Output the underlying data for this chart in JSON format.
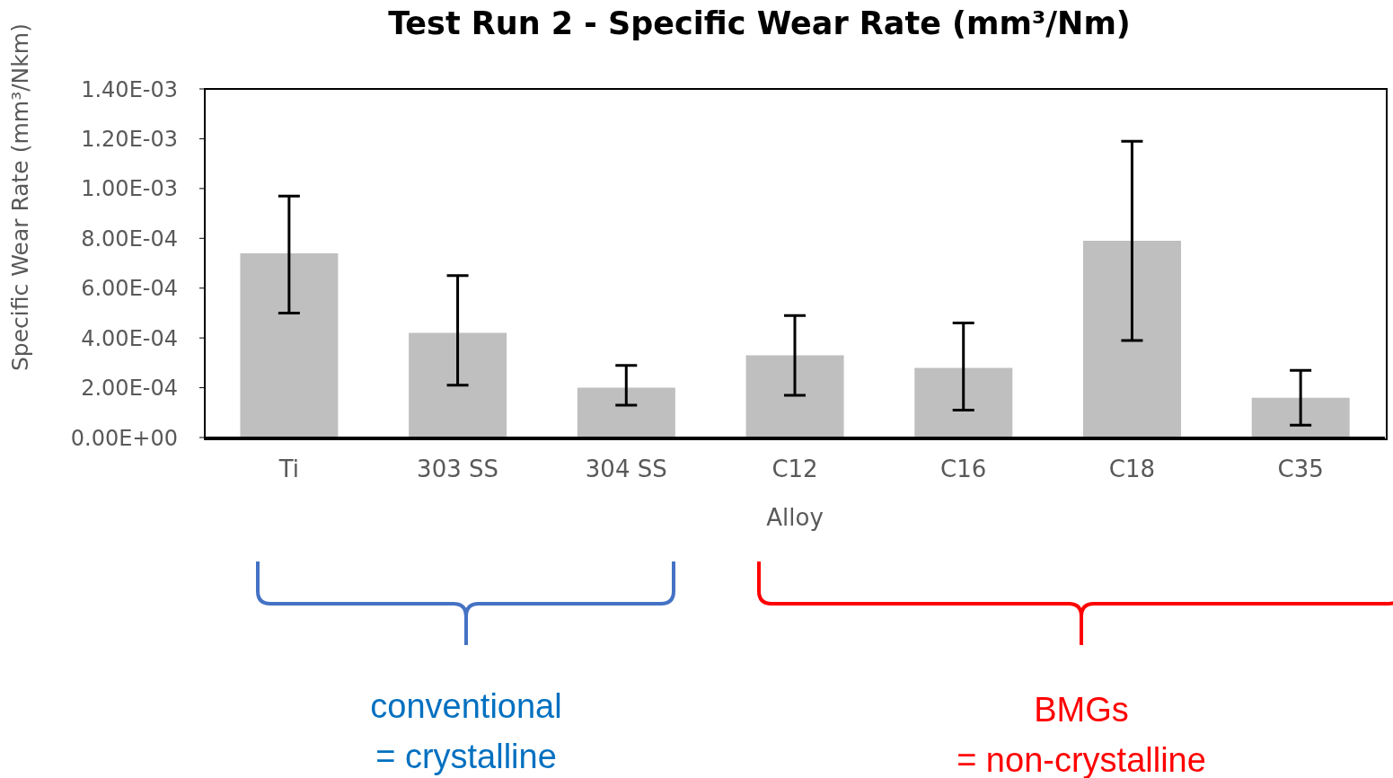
{
  "chart_data": {
    "type": "bar",
    "title": "Test Run 2 -  Specific Wear Rate (mm³/Nm)",
    "xlabel": "Alloy",
    "ylabel": "Specific Wear Rate (mm³/Nkm)",
    "categories": [
      "Ti",
      "303 SS",
      "304 SS",
      "C12",
      "C16",
      "C18",
      "C35"
    ],
    "values": [
      0.00074,
      0.00042,
      0.0002,
      0.00033,
      0.00028,
      0.00079,
      0.00016
    ],
    "errors": [
      [
        0.0005,
        0.00097
      ],
      [
        0.00021,
        0.00065
      ],
      [
        0.00013,
        0.00029
      ],
      [
        0.00017,
        0.00049
      ],
      [
        0.00011,
        0.00046
      ],
      [
        0.00039,
        0.00119
      ],
      [
        5e-05,
        0.00027
      ]
    ],
    "color": "#bfbfbf",
    "ylim": [
      0,
      0.0014
    ],
    "yticks": [
      {
        "value": 0,
        "label": "0.00E+00"
      },
      {
        "value": 0.0002,
        "label": "2.00E-04"
      },
      {
        "value": 0.0004,
        "label": "4.00E-04"
      },
      {
        "value": 0.0006,
        "label": "6.00E-04"
      },
      {
        "value": 0.0008,
        "label": "8.00E-04"
      },
      {
        "value": 0.001,
        "label": "1.00E-03"
      },
      {
        "value": 0.0012,
        "label": "1.20E-03"
      },
      {
        "value": 0.0014,
        "label": "1.40E-03"
      }
    ],
    "annotations": [
      "conventional\n= crystalline",
      "BMGs\n= non-crystalline"
    ]
  }
}
